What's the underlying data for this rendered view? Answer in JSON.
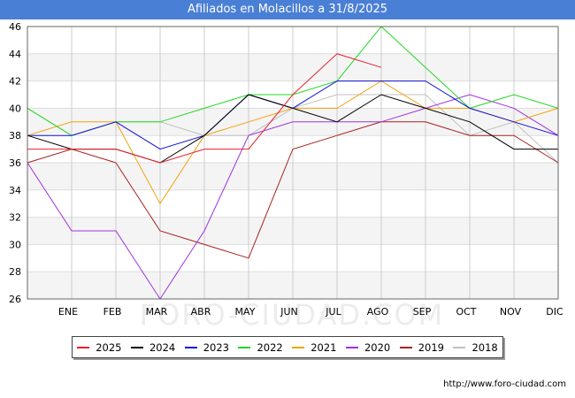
{
  "header": {
    "title": "Afiliados en Molacillos a 31/8/2025"
  },
  "footer": {
    "url": "http://www.foro-ciudad.com"
  },
  "watermark": "FORO-CIUDAD.COM",
  "colors": {
    "title_bg": "#4a7fd6",
    "band": "#f4f4f4",
    "grid": "#cccccc"
  },
  "chart_data": {
    "type": "line",
    "title": "Afiliados en Molacillos a 31/8/2025",
    "categories": [
      "",
      "ENE",
      "FEB",
      "MAR",
      "ABR",
      "MAY",
      "JUN",
      "JUL",
      "AGO",
      "SEP",
      "OCT",
      "NOV",
      "DIC"
    ],
    "ylim": [
      26,
      46
    ],
    "yticks": [
      "26",
      "28",
      "30",
      "32",
      "34",
      "36",
      "38",
      "40",
      "42",
      "44",
      "46"
    ],
    "grid": true,
    "legend_position": "bottom",
    "series": [
      {
        "name": "2025",
        "color": "#e8202a",
        "values": [
          37,
          37,
          37,
          36,
          37,
          37,
          41,
          44,
          43,
          null,
          null,
          null,
          null
        ]
      },
      {
        "name": "2024",
        "color": "#000000",
        "values": [
          38,
          37,
          37,
          36,
          38,
          41,
          40,
          39,
          41,
          40,
          39,
          37,
          37
        ]
      },
      {
        "name": "2023",
        "color": "#1010d8",
        "values": [
          38,
          38,
          39,
          37,
          38,
          41,
          40,
          42,
          42,
          42,
          40,
          39,
          38
        ]
      },
      {
        "name": "2022",
        "color": "#22d822",
        "values": [
          40,
          38,
          39,
          39,
          40,
          41,
          41,
          42,
          46,
          43,
          40,
          41,
          40
        ]
      },
      {
        "name": "2021",
        "color": "#f2a20c",
        "values": [
          38,
          39,
          39,
          33,
          38,
          39,
          40,
          40,
          42,
          40,
          40,
          39,
          40
        ]
      },
      {
        "name": "2020",
        "color": "#a030e0",
        "values": [
          36,
          31,
          31,
          26,
          31,
          38,
          39,
          39,
          39,
          40,
          41,
          40,
          38
        ]
      },
      {
        "name": "2019",
        "color": "#a82020",
        "values": [
          36,
          37,
          36,
          31,
          30,
          29,
          37,
          38,
          39,
          39,
          38,
          38,
          36
        ]
      },
      {
        "name": "2018",
        "color": "#c0c0c0",
        "values": [
          40,
          38,
          39,
          39,
          38,
          38,
          40,
          41,
          41,
          41,
          38,
          39,
          36
        ]
      }
    ]
  }
}
